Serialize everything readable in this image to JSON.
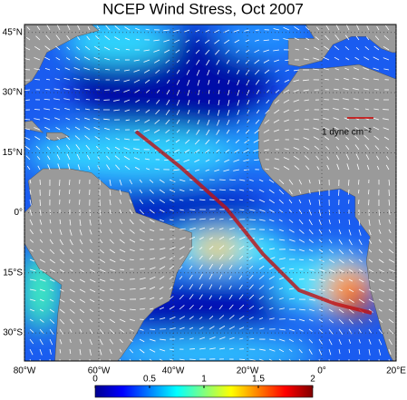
{
  "title": "NCEP Wind Stress, Oct 2007",
  "map": {
    "xlim": [
      -80,
      20
    ],
    "ylim": [
      -37,
      47
    ],
    "xticks": [
      {
        "value": -80,
        "label": "80°W"
      },
      {
        "value": -60,
        "label": "60°W"
      },
      {
        "value": -40,
        "label": "40°W"
      },
      {
        "value": -20,
        "label": "20°W"
      },
      {
        "value": 0,
        "label": "0°"
      },
      {
        "value": 20,
        "label": "20°E"
      }
    ],
    "yticks": [
      {
        "value": 45,
        "label": "45°N"
      },
      {
        "value": 30,
        "label": "30°N"
      },
      {
        "value": 15,
        "label": "15°N"
      },
      {
        "value": 0,
        "label": "0°"
      },
      {
        "value": -15,
        "label": "15°S"
      },
      {
        "value": -30,
        "label": "30°S"
      }
    ]
  },
  "legend": {
    "label": "1 dyne cm⁻²"
  },
  "colorbar": {
    "range": [
      0,
      2
    ],
    "ticks": [
      0,
      0.5,
      1,
      1.5,
      2
    ]
  }
}
